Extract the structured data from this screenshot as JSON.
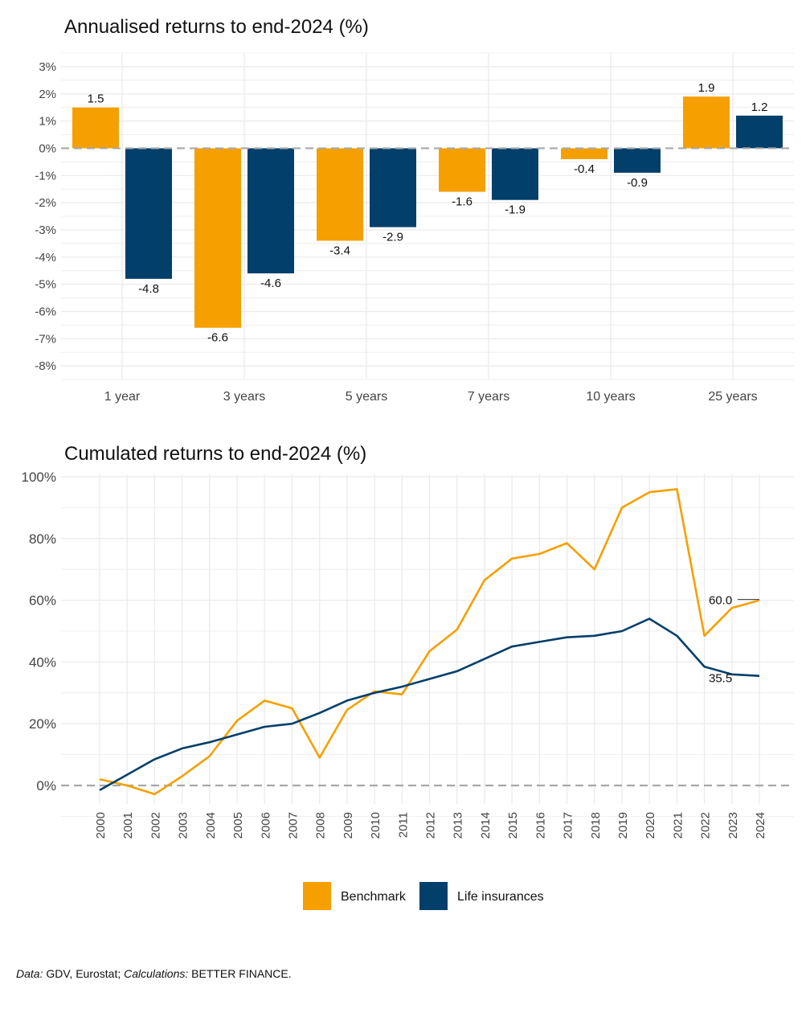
{
  "colors": {
    "benchmark": "#F5A000",
    "life": "#023F6A",
    "grid": "#EBEBEB",
    "zero": "#A8A8A8"
  },
  "chart_data": [
    {
      "type": "bar",
      "title": "Annualised returns to end-2024 (%)",
      "categories": [
        "1 year",
        "3 years",
        "5 years",
        "7 years",
        "10 years",
        "25 years"
      ],
      "series": [
        {
          "name": "Benchmark",
          "values": [
            1.5,
            -6.6,
            -3.4,
            -1.6,
            -0.4,
            1.9
          ]
        },
        {
          "name": "Life insurances",
          "values": [
            -4.8,
            -4.6,
            -2.9,
            -1.9,
            -0.9,
            1.2
          ]
        }
      ],
      "ylim": [
        -8.5,
        3.5
      ],
      "yticks": [
        "3%",
        "2%",
        "1%",
        "0%",
        "-1%",
        "-2%",
        "-3%",
        "-4%",
        "-5%",
        "-6%",
        "-7%",
        "-8%"
      ],
      "ytick_values": [
        3,
        2,
        1,
        0,
        -1,
        -2,
        -3,
        -4,
        -5,
        -6,
        -7,
        -8
      ],
      "grid": true
    },
    {
      "type": "line",
      "title": "Cumulated returns to end-2024 (%)",
      "x": [
        "2000",
        "2001",
        "2002",
        "2003",
        "2004",
        "2005",
        "2006",
        "2007",
        "2008",
        "2009",
        "2010",
        "2011",
        "2012",
        "2013",
        "2014",
        "2015",
        "2016",
        "2017",
        "2018",
        "2019",
        "2020",
        "2021",
        "2022",
        "2023",
        "2024"
      ],
      "series": [
        {
          "name": "Benchmark",
          "values": [
            2,
            0,
            -2.8,
            3,
            9.5,
            21,
            27.5,
            25,
            9,
            24.5,
            30.5,
            29.5,
            43.5,
            50.5,
            66.5,
            73.5,
            75,
            78.5,
            70,
            90,
            95,
            96,
            48.5,
            57.5,
            60
          ],
          "end_label": "60.0"
        },
        {
          "name": "Life insurances",
          "values": [
            -1.5,
            3.5,
            8.5,
            12,
            14,
            16.5,
            19,
            20,
            23.5,
            27.5,
            30,
            32,
            34.5,
            37,
            41,
            45,
            46.5,
            48,
            48.5,
            50,
            54,
            48.5,
            38.5,
            36,
            35.5
          ],
          "end_label": "35.5"
        }
      ],
      "ylim": [
        -6,
        101
      ],
      "yticks": [
        "100%",
        "80%",
        "60%",
        "40%",
        "20%",
        "0%"
      ],
      "ytick_values": [
        100,
        80,
        60,
        40,
        20,
        0
      ],
      "grid": true
    }
  ],
  "legend": {
    "items": [
      "Benchmark",
      "Life insurances"
    ],
    "placement": "bottom"
  },
  "source": {
    "data_label": "Data:",
    "data_text": " GDV, Eurostat; ",
    "calc_label": "Calculations:",
    "calc_text": " BETTER FINANCE."
  }
}
